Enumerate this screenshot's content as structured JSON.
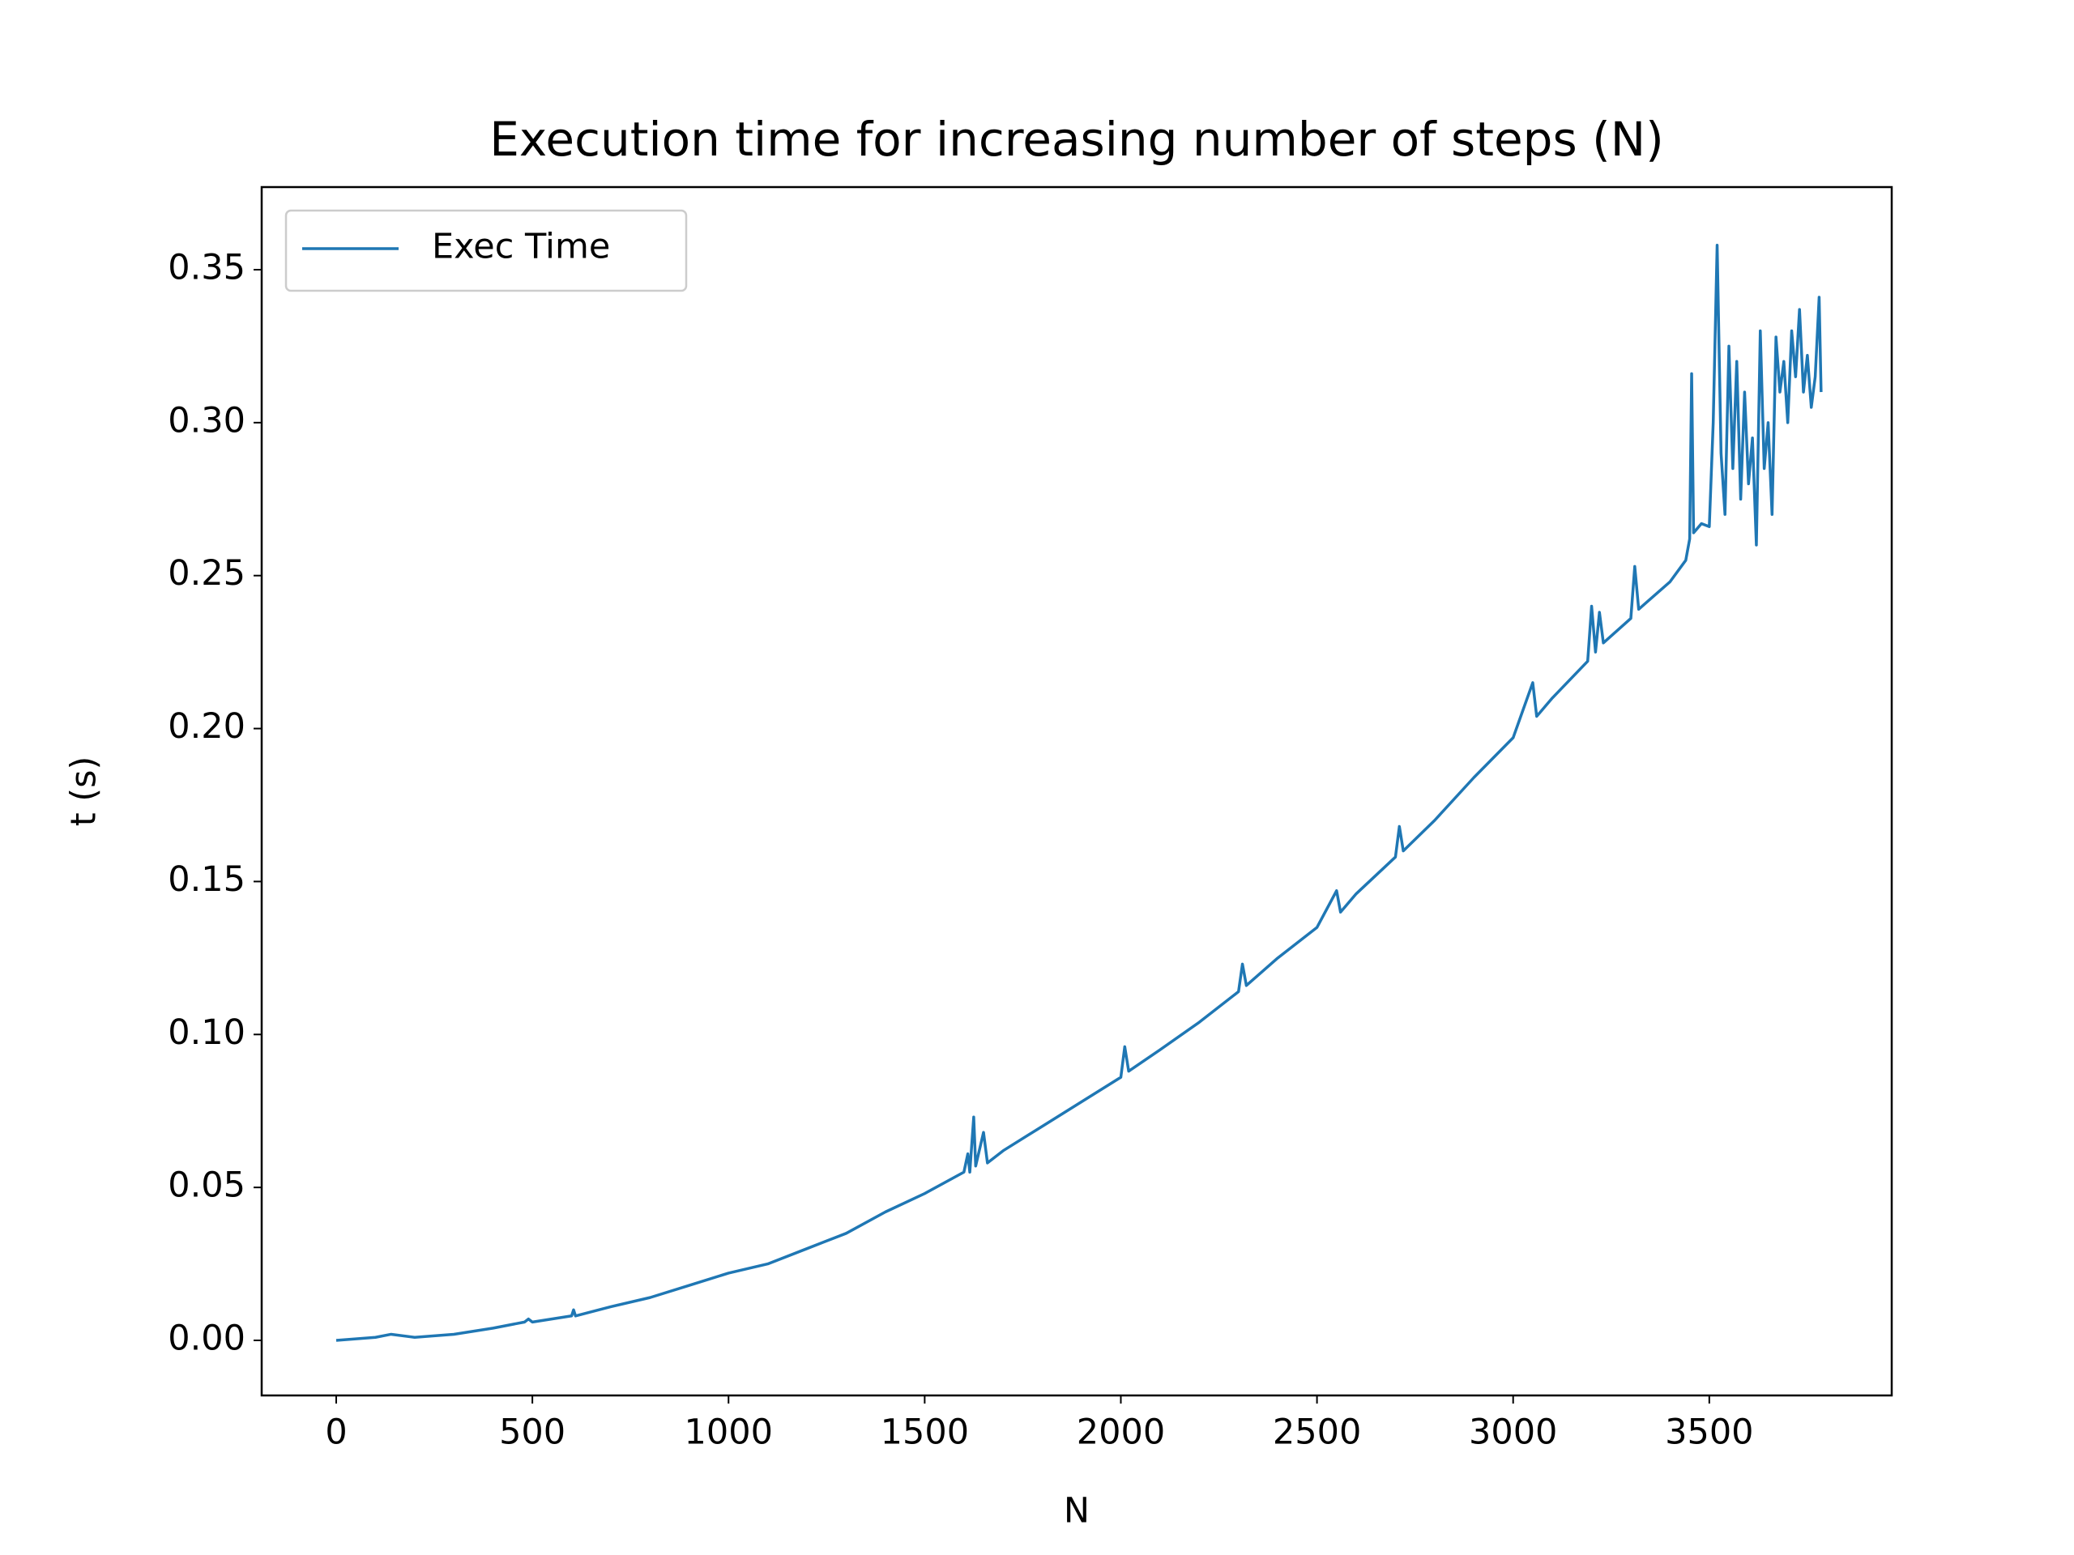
{
  "chart_data": {
    "type": "line",
    "title": "Execution time for increasing number of steps (N)",
    "x_label": "N",
    "y_label": "t (s)",
    "legend": "upper left",
    "xlim": [
      -190,
      3965
    ],
    "ylim": [
      -0.018,
      0.377
    ],
    "xticks": [
      0,
      500,
      1000,
      1500,
      2000,
      2500,
      3000,
      3500
    ],
    "yticks": [
      {
        "value": 0,
        "label": "0.00"
      },
      {
        "value": 0.05,
        "label": "0.05"
      },
      {
        "value": 0.1,
        "label": "0.10"
      },
      {
        "value": 0.15,
        "label": "0.15"
      },
      {
        "value": 0.2,
        "label": "0.20"
      },
      {
        "value": 0.25,
        "label": "0.25"
      },
      {
        "value": 0.3,
        "label": "0.30"
      },
      {
        "value": 0.35,
        "label": "0.35"
      }
    ],
    "x": [
      0,
      100,
      140,
      200,
      300,
      400,
      480,
      490,
      500,
      600,
      605,
      610,
      700,
      800,
      900,
      1000,
      1100,
      1200,
      1300,
      1400,
      1500,
      1600,
      1610,
      1615,
      1625,
      1630,
      1650,
      1660,
      1700,
      1800,
      1900,
      2000,
      2010,
      2020,
      2100,
      2200,
      2300,
      2310,
      2320,
      2400,
      2500,
      2550,
      2560,
      2600,
      2700,
      2710,
      2720,
      2800,
      2900,
      3000,
      3050,
      3060,
      3100,
      3190,
      3200,
      3210,
      3220,
      3230,
      3300,
      3310,
      3320,
      3400,
      3440,
      3450,
      3455,
      3460,
      3480,
      3500,
      3510,
      3520,
      3530,
      3540,
      3550,
      3560,
      3570,
      3580,
      3590,
      3600,
      3610,
      3620,
      3630,
      3640,
      3650,
      3660,
      3670,
      3680,
      3690,
      3700,
      3710,
      3720,
      3730,
      3740,
      3750,
      3760,
      3770,
      3780,
      3785
    ],
    "series": [
      {
        "name": "Exec Time",
        "color": "#1f77b4",
        "values": [
          0.0,
          0.001,
          0.002,
          0.001,
          0.002,
          0.004,
          0.006,
          0.007,
          0.006,
          0.008,
          0.01,
          0.008,
          0.011,
          0.014,
          0.018,
          0.022,
          0.025,
          0.03,
          0.035,
          0.042,
          0.048,
          0.055,
          0.061,
          0.055,
          0.073,
          0.057,
          0.068,
          0.058,
          0.062,
          0.07,
          0.078,
          0.086,
          0.096,
          0.088,
          0.095,
          0.104,
          0.114,
          0.123,
          0.116,
          0.125,
          0.135,
          0.147,
          0.14,
          0.146,
          0.158,
          0.168,
          0.16,
          0.17,
          0.184,
          0.197,
          0.215,
          0.204,
          0.21,
          0.222,
          0.24,
          0.225,
          0.238,
          0.228,
          0.236,
          0.253,
          0.239,
          0.248,
          0.255,
          0.262,
          0.316,
          0.264,
          0.267,
          0.266,
          0.3,
          0.358,
          0.29,
          0.27,
          0.325,
          0.285,
          0.32,
          0.275,
          0.31,
          0.28,
          0.295,
          0.26,
          0.33,
          0.285,
          0.3,
          0.27,
          0.328,
          0.31,
          0.32,
          0.3,
          0.33,
          0.315,
          0.337,
          0.31,
          0.322,
          0.305,
          0.315,
          0.341,
          0.31
        ]
      }
    ]
  }
}
